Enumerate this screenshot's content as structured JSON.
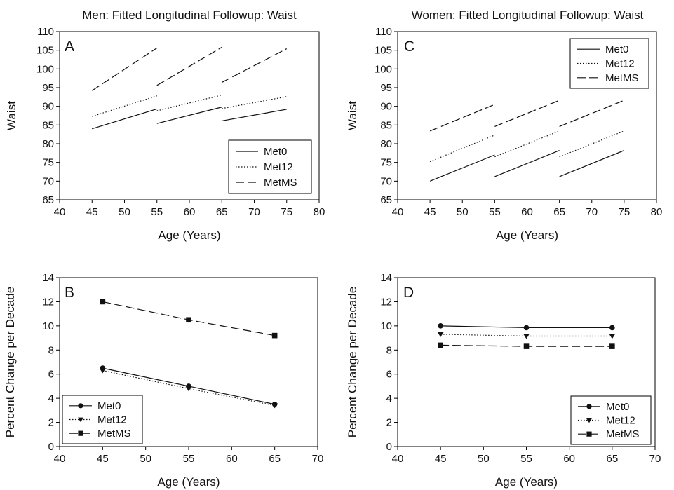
{
  "chart_data": [
    {
      "id": "A",
      "type": "line",
      "panel_label": "A",
      "title": "Men: Fitted Longitudinal Followup: Waist",
      "xlabel": "Age (Years)",
      "ylabel": "Waist",
      "xlim": [
        40,
        80
      ],
      "ylim": [
        65,
        110
      ],
      "xticks": [
        40,
        45,
        50,
        55,
        60,
        65,
        70,
        75,
        80
      ],
      "yticks": [
        65,
        70,
        75,
        80,
        85,
        90,
        95,
        100,
        105,
        110
      ],
      "legend": {
        "position": "bottom-right",
        "markers": false
      },
      "series": [
        {
          "name": "Met0",
          "style": "solid",
          "segments": [
            {
              "x": [
                45,
                55
              ],
              "y": [
                84.0,
                89.3
              ]
            },
            {
              "x": [
                55,
                65
              ],
              "y": [
                85.4,
                89.8
              ]
            },
            {
              "x": [
                65,
                75
              ],
              "y": [
                86.1,
                89.2
              ]
            }
          ]
        },
        {
          "name": "Met12",
          "style": "dotted",
          "segments": [
            {
              "x": [
                45,
                55
              ],
              "y": [
                87.3,
                92.8
              ]
            },
            {
              "x": [
                55,
                65
              ],
              "y": [
                88.8,
                93.0
              ]
            },
            {
              "x": [
                65,
                75
              ],
              "y": [
                89.4,
                92.6
              ]
            }
          ]
        },
        {
          "name": "MetMS",
          "style": "dashed",
          "segments": [
            {
              "x": [
                45,
                55
              ],
              "y": [
                94.2,
                105.6
              ]
            },
            {
              "x": [
                55,
                65
              ],
              "y": [
                95.6,
                105.8
              ]
            },
            {
              "x": [
                65,
                75
              ],
              "y": [
                96.4,
                105.4
              ]
            }
          ]
        }
      ]
    },
    {
      "id": "C",
      "type": "line",
      "panel_label": "C",
      "title": "Women: Fitted Longitudinal Followup: Waist",
      "xlabel": "Age (Years)",
      "ylabel": "Waist",
      "xlim": [
        40,
        80
      ],
      "ylim": [
        65,
        110
      ],
      "xticks": [
        40,
        45,
        50,
        55,
        60,
        65,
        70,
        75,
        80
      ],
      "yticks": [
        65,
        70,
        75,
        80,
        85,
        90,
        95,
        100,
        105,
        110
      ],
      "legend": {
        "position": "top-right",
        "markers": false
      },
      "series": [
        {
          "name": "Met0",
          "style": "solid",
          "segments": [
            {
              "x": [
                45,
                55
              ],
              "y": [
                70.0,
                77.0
              ]
            },
            {
              "x": [
                55,
                65
              ],
              "y": [
                71.2,
                78.2
              ]
            },
            {
              "x": [
                65,
                75
              ],
              "y": [
                71.2,
                78.2
              ]
            }
          ]
        },
        {
          "name": "Met12",
          "style": "dotted",
          "segments": [
            {
              "x": [
                45,
                55
              ],
              "y": [
                75.2,
                82.3
              ]
            },
            {
              "x": [
                55,
                65
              ],
              "y": [
                76.5,
                83.4
              ]
            },
            {
              "x": [
                65,
                75
              ],
              "y": [
                76.5,
                83.4
              ]
            }
          ]
        },
        {
          "name": "MetMS",
          "style": "dashed",
          "segments": [
            {
              "x": [
                45,
                55
              ],
              "y": [
                83.4,
                90.5
              ]
            },
            {
              "x": [
                55,
                65
              ],
              "y": [
                84.6,
                91.6
              ]
            },
            {
              "x": [
                65,
                75
              ],
              "y": [
                84.6,
                91.6
              ]
            }
          ]
        }
      ]
    },
    {
      "id": "B",
      "type": "line",
      "panel_label": "B",
      "title": "",
      "xlabel": "Age (Years)",
      "ylabel": "Percent Change per Decade",
      "xlim": [
        40,
        70
      ],
      "ylim": [
        0,
        14
      ],
      "xticks": [
        40,
        45,
        50,
        55,
        60,
        65,
        70
      ],
      "yticks": [
        0,
        2,
        4,
        6,
        8,
        10,
        12,
        14
      ],
      "legend": {
        "position": "bottom-left",
        "markers": true
      },
      "series": [
        {
          "name": "Met0",
          "style": "solid",
          "marker": "circle",
          "segments": [
            {
              "x": [
                45,
                55,
                65
              ],
              "y": [
                6.5,
                5.0,
                3.5
              ]
            }
          ]
        },
        {
          "name": "Met12",
          "style": "dotted",
          "marker": "triangle-down",
          "segments": [
            {
              "x": [
                45,
                55,
                65
              ],
              "y": [
                6.3,
                4.8,
                3.4
              ]
            }
          ]
        },
        {
          "name": "MetMS",
          "style": "dashed",
          "marker": "square",
          "segments": [
            {
              "x": [
                45,
                55,
                65
              ],
              "y": [
                12.0,
                10.5,
                9.2
              ]
            }
          ]
        }
      ]
    },
    {
      "id": "D",
      "type": "line",
      "panel_label": "D",
      "title": "",
      "xlabel": "Age (Years)",
      "ylabel": "Percent Change per Decade",
      "xlim": [
        40,
        70
      ],
      "ylim": [
        0,
        14
      ],
      "xticks": [
        40,
        45,
        50,
        55,
        60,
        65,
        70
      ],
      "yticks": [
        0,
        2,
        4,
        6,
        8,
        10,
        12,
        14
      ],
      "legend": {
        "position": "bottom-right",
        "markers": true
      },
      "series": [
        {
          "name": "Met0",
          "style": "solid",
          "marker": "circle",
          "segments": [
            {
              "x": [
                45,
                55,
                65
              ],
              "y": [
                10.0,
                9.85,
                9.85
              ]
            }
          ]
        },
        {
          "name": "Met12",
          "style": "dotted",
          "marker": "triangle-down",
          "segments": [
            {
              "x": [
                45,
                55,
                65
              ],
              "y": [
                9.3,
                9.15,
                9.15
              ]
            }
          ]
        },
        {
          "name": "MetMS",
          "style": "dashed",
          "marker": "square",
          "segments": [
            {
              "x": [
                45,
                55,
                65
              ],
              "y": [
                8.4,
                8.3,
                8.3
              ]
            }
          ]
        }
      ]
    }
  ]
}
